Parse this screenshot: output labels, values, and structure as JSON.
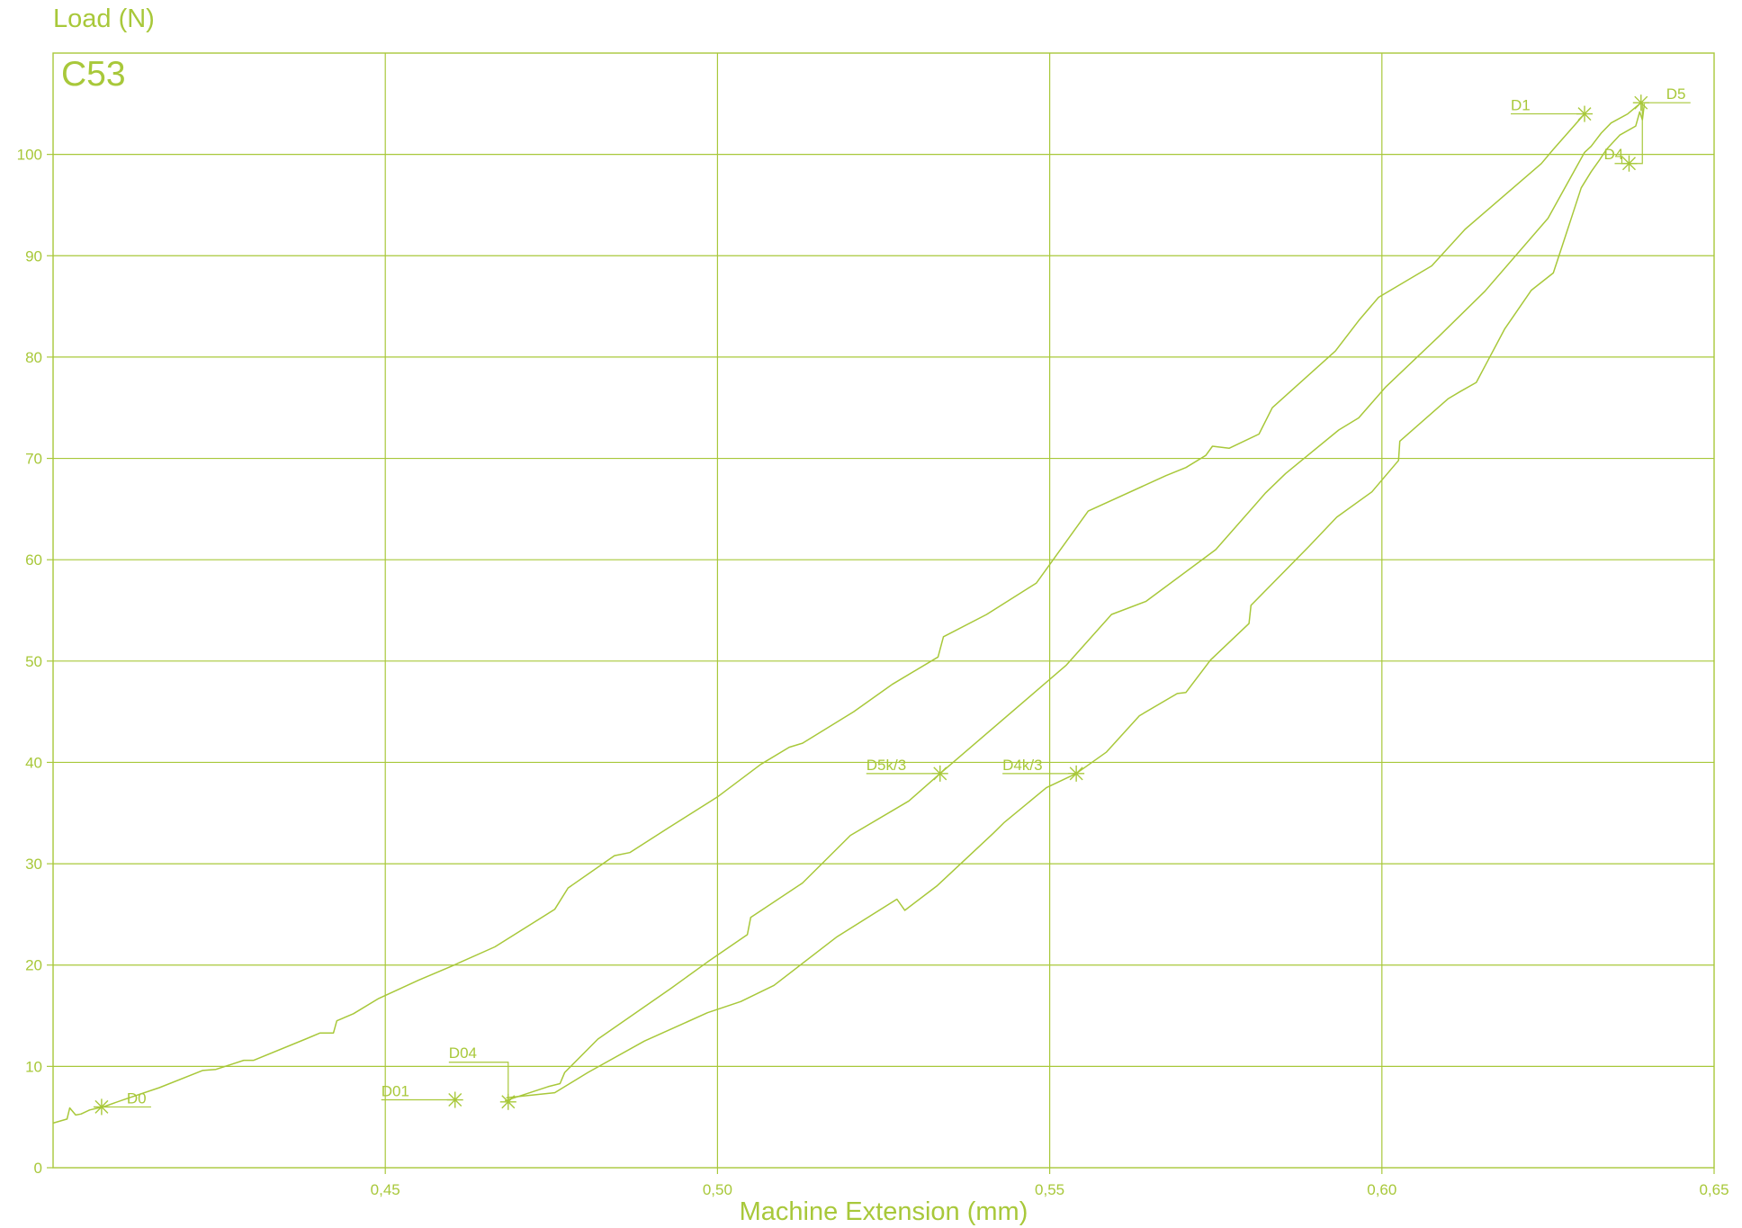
{
  "chart_data": {
    "type": "line",
    "title": "C53",
    "xlabel": "Machine Extension (mm)",
    "ylabel": "Load (N)",
    "xlim": [
      0.4,
      0.65
    ],
    "ylim": [
      0,
      110
    ],
    "x_ticks": [
      0.45,
      0.5,
      0.55,
      0.6,
      0.65
    ],
    "x_tick_labels": [
      "0,45",
      "0,50",
      "0,55",
      "0,60",
      "0,65"
    ],
    "y_ticks": [
      0,
      10,
      20,
      30,
      40,
      50,
      60,
      70,
      80,
      90,
      100
    ],
    "y_tick_labels": [
      "0",
      "10",
      "20",
      "30",
      "40",
      "50",
      "60",
      "70",
      "80",
      "90",
      "100"
    ],
    "grid": true,
    "color": "#A8C83A",
    "series": [
      {
        "points": [
          [
            0.4,
            4.4
          ],
          [
            0.4021,
            4.8
          ],
          [
            0.4025,
            5.9
          ],
          [
            0.4034,
            5.2
          ],
          [
            0.4042,
            5.3
          ],
          [
            0.4055,
            5.7
          ],
          [
            0.4075,
            6.0
          ],
          [
            0.411,
            6.8
          ],
          [
            0.416,
            7.9
          ],
          [
            0.4225,
            9.6
          ],
          [
            0.4245,
            9.7
          ],
          [
            0.4287,
            10.6
          ],
          [
            0.4302,
            10.6
          ],
          [
            0.438,
            12.7
          ],
          [
            0.4402,
            13.3
          ],
          [
            0.4422,
            13.3
          ],
          [
            0.4427,
            14.5
          ],
          [
            0.4452,
            15.2
          ],
          [
            0.449,
            16.7
          ],
          [
            0.455,
            18.5
          ],
          [
            0.46,
            19.9
          ],
          [
            0.4665,
            21.8
          ],
          [
            0.4755,
            25.5
          ],
          [
            0.4775,
            27.6
          ],
          [
            0.4845,
            30.8
          ],
          [
            0.4868,
            31.1
          ],
          [
            0.4925,
            33.5
          ],
          [
            0.5,
            36.6
          ],
          [
            0.5065,
            39.8
          ],
          [
            0.5108,
            41.5
          ],
          [
            0.5128,
            41.9
          ],
          [
            0.5205,
            45.0
          ],
          [
            0.5263,
            47.7
          ],
          [
            0.5332,
            50.4
          ],
          [
            0.534,
            52.4
          ],
          [
            0.5405,
            54.6
          ],
          [
            0.548,
            57.7
          ],
          [
            0.5558,
            64.8
          ],
          [
            0.5675,
            68.3
          ],
          [
            0.5705,
            69.1
          ],
          [
            0.5735,
            70.3
          ],
          [
            0.5745,
            71.2
          ],
          [
            0.577,
            71.0
          ],
          [
            0.5815,
            72.4
          ],
          [
            0.5835,
            75.0
          ],
          [
            0.593,
            80.6
          ],
          [
            0.5965,
            83.6
          ],
          [
            0.5995,
            85.9
          ],
          [
            0.6075,
            89.0
          ],
          [
            0.6125,
            92.6
          ],
          [
            0.624,
            99.1
          ],
          [
            0.6258,
            100.5
          ],
          [
            0.6305,
            104.0
          ]
        ]
      },
      {
        "points": [
          [
            0.468,
            6.6
          ],
          [
            0.4745,
            8.0
          ],
          [
            0.4763,
            8.3
          ],
          [
            0.477,
            9.4
          ],
          [
            0.482,
            12.7
          ],
          [
            0.493,
            17.7
          ],
          [
            0.4985,
            20.3
          ],
          [
            0.5045,
            23.0
          ],
          [
            0.505,
            24.7
          ],
          [
            0.5128,
            28.1
          ],
          [
            0.52,
            32.8
          ],
          [
            0.5288,
            36.2
          ],
          [
            0.5335,
            38.9
          ],
          [
            0.5525,
            49.6
          ],
          [
            0.5593,
            54.6
          ],
          [
            0.5645,
            55.9
          ],
          [
            0.575,
            61.0
          ],
          [
            0.5825,
            66.6
          ],
          [
            0.5855,
            68.5
          ],
          [
            0.5935,
            72.8
          ],
          [
            0.5965,
            74.0
          ],
          [
            0.6005,
            77.0
          ],
          [
            0.6085,
            82.0
          ],
          [
            0.6155,
            86.5
          ],
          [
            0.625,
            93.7
          ],
          [
            0.6305,
            100.2
          ],
          [
            0.6315,
            100.8
          ],
          [
            0.633,
            102.1
          ],
          [
            0.6345,
            103.1
          ],
          [
            0.637,
            104.0
          ],
          [
            0.639,
            105.1
          ]
        ]
      },
      {
        "points": [
          [
            0.4682,
            6.9
          ],
          [
            0.4755,
            7.4
          ],
          [
            0.4805,
            9.4
          ],
          [
            0.489,
            12.5
          ],
          [
            0.4985,
            15.3
          ],
          [
            0.5035,
            16.4
          ],
          [
            0.5085,
            18.0
          ],
          [
            0.518,
            22.8
          ],
          [
            0.527,
            26.5
          ],
          [
            0.5282,
            25.4
          ],
          [
            0.533,
            27.8
          ],
          [
            0.5415,
            33.0
          ],
          [
            0.5432,
            34.1
          ],
          [
            0.5495,
            37.5
          ],
          [
            0.554,
            38.9
          ],
          [
            0.5585,
            41.0
          ],
          [
            0.5635,
            44.6
          ],
          [
            0.5692,
            46.8
          ],
          [
            0.5705,
            46.9
          ],
          [
            0.5742,
            50.1
          ],
          [
            0.58,
            53.7
          ],
          [
            0.5803,
            55.5
          ],
          [
            0.589,
            61.3
          ],
          [
            0.5932,
            64.2
          ],
          [
            0.5985,
            66.7
          ],
          [
            0.6025,
            69.8
          ],
          [
            0.6027,
            71.7
          ],
          [
            0.61,
            75.9
          ],
          [
            0.6118,
            76.6
          ],
          [
            0.6142,
            77.5
          ],
          [
            0.6185,
            82.8
          ],
          [
            0.6225,
            86.6
          ],
          [
            0.6258,
            88.3
          ],
          [
            0.627,
            90.7
          ],
          [
            0.6288,
            94.3
          ],
          [
            0.63,
            96.7
          ],
          [
            0.6315,
            98.3
          ],
          [
            0.6328,
            99.5
          ],
          [
            0.6338,
            100.5
          ],
          [
            0.6358,
            101.9
          ],
          [
            0.6382,
            102.8
          ],
          [
            0.6388,
            104.2
          ],
          [
            0.6392,
            103.4
          ],
          [
            0.6395,
            105.0
          ]
        ]
      }
    ],
    "annotations": [
      {
        "label": "D0",
        "x": 0.4073,
        "y": 6.0,
        "label_side": "right"
      },
      {
        "label": "D01",
        "x": 0.4605,
        "y": 6.7,
        "label_side": "left"
      },
      {
        "label": "D04",
        "x": 0.4685,
        "y": 6.5,
        "label_side": "up-left"
      },
      {
        "label": "D5k/3",
        "x": 0.5335,
        "y": 38.9,
        "label_side": "left"
      },
      {
        "label": "D4k/3",
        "x": 0.554,
        "y": 38.9,
        "label_side": "left"
      },
      {
        "label": "D1",
        "x": 0.6305,
        "y": 104.0,
        "label_side": "left"
      },
      {
        "label": "D5",
        "x": 0.639,
        "y": 105.1,
        "label_side": "right"
      },
      {
        "label": "D4",
        "x": 0.6372,
        "y": 99.1,
        "label_side": "box"
      }
    ]
  }
}
